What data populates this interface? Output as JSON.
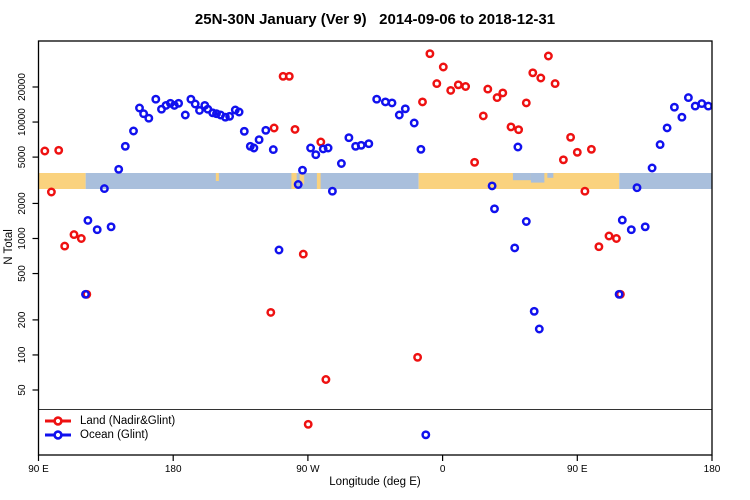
{
  "chart_data": {
    "type": "scatter",
    "title": "25N-30N January (Ver 9)   2014-09-06 to 2018-12-31",
    "xlabel": "Longitude (deg E)",
    "ylabel": "N Total",
    "x_axis": {
      "domain": [
        90,
        540
      ],
      "note": "longitude axis wraps: 90E eastward through 180, 90W, 0, 90E to 180",
      "ticks": [
        {
          "pos": 90,
          "label": "90 E"
        },
        {
          "pos": 180,
          "label": "180"
        },
        {
          "pos": 270,
          "label": "90 W"
        },
        {
          "pos": 360,
          "label": "0"
        },
        {
          "pos": 450,
          "label": "90 E"
        },
        {
          "pos": 540,
          "label": "180"
        }
      ]
    },
    "y_axis": {
      "scale": "log",
      "domain": [
        14,
        48000
      ],
      "ticks": [
        {
          "value": 50,
          "label": "50"
        },
        {
          "value": 100,
          "label": "100"
        },
        {
          "value": 200,
          "label": "200"
        },
        {
          "value": 500,
          "label": "500"
        },
        {
          "value": 1000,
          "label": "1000"
        },
        {
          "value": 2000,
          "label": "2000"
        },
        {
          "value": 5000,
          "label": "5000"
        },
        {
          "value": 10000,
          "label": "10000"
        },
        {
          "value": 20000,
          "label": "20000"
        }
      ]
    },
    "series": [
      {
        "name": "Land (Nadir&Glint)",
        "color": "#ee1111",
        "marker": "open-circle",
        "points": [
          [
            94.2,
            5640
          ],
          [
            103.5,
            5720
          ],
          [
            98.6,
            2510
          ],
          [
            107.5,
            860
          ],
          [
            113.7,
            1080
          ],
          [
            118.6,
            1000
          ],
          [
            122.3,
            332
          ],
          [
            245.2,
            232
          ],
          [
            247.4,
            8890
          ],
          [
            253.4,
            24700
          ],
          [
            257.6,
            24700
          ],
          [
            261.4,
            8650
          ],
          [
            266.9,
            735
          ],
          [
            270.2,
            25.4
          ],
          [
            278.6,
            6740
          ],
          [
            282.0,
            61.5
          ],
          [
            343.3,
            95.5
          ],
          [
            346.6,
            14900
          ],
          [
            351.5,
            38600
          ],
          [
            356.1,
            21400
          ],
          [
            360.5,
            29700
          ],
          [
            365.4,
            18700
          ],
          [
            370.5,
            20900
          ],
          [
            375.4,
            20200
          ],
          [
            381.4,
            4510
          ],
          [
            387.2,
            11300
          ],
          [
            390.2,
            19200
          ],
          [
            396.4,
            16200
          ],
          [
            400.2,
            17800
          ],
          [
            405.7,
            9080
          ],
          [
            410.8,
            8600
          ],
          [
            415.9,
            14600
          ],
          [
            420.3,
            26500
          ],
          [
            425.6,
            23900
          ],
          [
            430.7,
            36900
          ],
          [
            435.2,
            21400
          ],
          [
            440.7,
            4740
          ],
          [
            445.5,
            7390
          ],
          [
            450.0,
            5500
          ],
          [
            455.1,
            2550
          ],
          [
            459.4,
            5830
          ],
          [
            464.4,
            850
          ],
          [
            471.2,
            1050
          ],
          [
            476.1,
            1000
          ],
          [
            478.8,
            332
          ]
        ]
      },
      {
        "name": "Ocean (Glint)",
        "color": "#1111ee",
        "marker": "open-circle",
        "points": [
          [
            121.4,
            332
          ],
          [
            123.0,
            1430
          ],
          [
            129.2,
            1190
          ],
          [
            134.0,
            2680
          ],
          [
            138.5,
            1260
          ],
          [
            143.6,
            3930
          ],
          [
            148.0,
            6190
          ],
          [
            153.5,
            8380
          ],
          [
            157.5,
            13200
          ],
          [
            160.2,
            11800
          ],
          [
            163.7,
            10800
          ],
          [
            168.4,
            15700
          ],
          [
            172.2,
            12900
          ],
          [
            175.2,
            13900
          ],
          [
            178.1,
            14500
          ],
          [
            180.8,
            13900
          ],
          [
            183.6,
            14500
          ],
          [
            188.1,
            11500
          ],
          [
            191.8,
            15700
          ],
          [
            194.7,
            14300
          ],
          [
            197.6,
            12600
          ],
          [
            201.1,
            13900
          ],
          [
            203.1,
            12900
          ],
          [
            206.4,
            12000
          ],
          [
            208.9,
            11800
          ],
          [
            211.7,
            11500
          ],
          [
            214.9,
            11000
          ],
          [
            217.7,
            11200
          ],
          [
            221.5,
            12700
          ],
          [
            224.0,
            12200
          ],
          [
            227.5,
            8330
          ],
          [
            231.5,
            6190
          ],
          [
            233.9,
            5990
          ],
          [
            237.4,
            7050
          ],
          [
            241.9,
            8490
          ],
          [
            246.9,
            5800
          ],
          [
            250.7,
            797
          ],
          [
            263.5,
            2910
          ],
          [
            266.4,
            3860
          ],
          [
            271.8,
            5990
          ],
          [
            275.3,
            5240
          ],
          [
            280.2,
            5880
          ],
          [
            283.5,
            5990
          ],
          [
            286.4,
            2550
          ],
          [
            292.4,
            4410
          ],
          [
            297.4,
            7340
          ],
          [
            301.9,
            6190
          ],
          [
            305.6,
            6310
          ],
          [
            310.7,
            6520
          ],
          [
            316.0,
            15700
          ],
          [
            321.8,
            14900
          ],
          [
            326.2,
            14600
          ],
          [
            331.1,
            11500
          ],
          [
            335.1,
            13000
          ],
          [
            341.0,
            9820
          ],
          [
            345.5,
            5830
          ],
          [
            348.8,
            20.6
          ],
          [
            393.1,
            2830
          ],
          [
            394.7,
            1800
          ],
          [
            408.2,
            830
          ],
          [
            410.3,
            6100
          ],
          [
            415.9,
            1400
          ],
          [
            421.2,
            237
          ],
          [
            424.6,
            167
          ],
          [
            477.9,
            332
          ],
          [
            480.1,
            1440
          ],
          [
            486.1,
            1190
          ],
          [
            489.9,
            2730
          ],
          [
            495.4,
            1260
          ],
          [
            500.0,
            4030
          ],
          [
            505.3,
            6400
          ],
          [
            510.0,
            8900
          ],
          [
            514.9,
            13400
          ],
          [
            519.9,
            11000
          ],
          [
            524.2,
            16200
          ],
          [
            528.8,
            13700
          ],
          [
            533.2,
            14400
          ],
          [
            537.5,
            13700
          ]
        ]
      }
    ],
    "map_strip": {
      "description": "land/ocean world-map band for latitude zone 25N-30N",
      "land_color": "#FAD27E",
      "ocean_color": "#A9BFDC",
      "segments": [
        {
          "from": 90,
          "to": 121.5,
          "type": "land"
        },
        {
          "from": 121.5,
          "to": 344,
          "type": "ocean"
        },
        {
          "from": 344,
          "to": 478,
          "type": "land"
        },
        {
          "from": 478,
          "to": 540,
          "type": "ocean"
        }
      ],
      "details": [
        {
          "from": 208.5,
          "to": 210.5,
          "type": "land",
          "frac": 0.5
        },
        {
          "from": 259.0,
          "to": 262.5,
          "type": "land",
          "frac": 1.0
        },
        {
          "from": 264.5,
          "to": 267.5,
          "type": "land",
          "frac": 0.7
        },
        {
          "from": 276.0,
          "to": 278.5,
          "type": "land",
          "frac": 1.0
        },
        {
          "from": 407.0,
          "to": 419.0,
          "type": "ocean",
          "frac": 0.45
        },
        {
          "from": 419.0,
          "to": 428.0,
          "type": "ocean",
          "frac": 0.6
        },
        {
          "from": 430.0,
          "to": 434.0,
          "type": "ocean",
          "frac": 0.3
        }
      ]
    },
    "legend": {
      "position": "bottom-left",
      "divider_note": "thin horizontal rule across plot above legend"
    }
  }
}
